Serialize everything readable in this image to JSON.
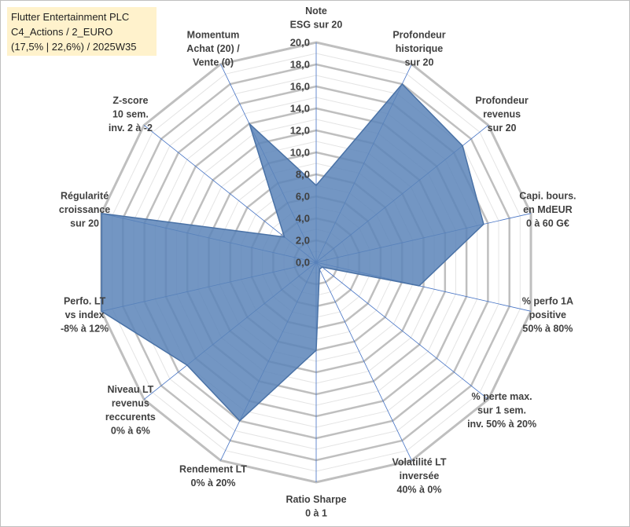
{
  "info_box": {
    "line1": "Flutter Entertainment PLC",
    "line2": "C4_Actions / 2_EURO",
    "line3": "(17,5% | 22,6%) / 2025W35"
  },
  "chart_data": {
    "type": "radar",
    "rmin": 0,
    "rmax": 20,
    "tick_step": 2,
    "ticks": [
      "0,0",
      "2,0",
      "4,0",
      "6,0",
      "8,0",
      "10,0",
      "12,0",
      "14,0",
      "16,0",
      "18,0",
      "20,0"
    ],
    "grid": true,
    "legend": "none",
    "axes": [
      {
        "label": [
          "Note",
          "ESG sur 20"
        ],
        "value": 7
      },
      {
        "label": [
          "Profondeur",
          "historique",
          "sur 20"
        ],
        "value": 18
      },
      {
        "label": [
          "Profondeur",
          "revenus",
          "sur 20"
        ],
        "value": 17
      },
      {
        "label": [
          "Capi. bours.",
          "en MdEUR",
          "0 à 60 G€"
        ],
        "value": 15.6
      },
      {
        "label": [
          "% perfo 1A",
          "positive",
          "50% à 80%"
        ],
        "value": 9.6
      },
      {
        "label": [
          "% perte max.",
          "sur 1 sem.",
          "inv. 50% à 20%"
        ],
        "value": 0.7
      },
      {
        "label": [
          "Volatilité LT",
          "inversée",
          "40% à 0%"
        ],
        "value": 0.7
      },
      {
        "label": [
          "Ratio Sharpe",
          "0 à 1"
        ],
        "value": 8
      },
      {
        "label": [
          "Rendement LT",
          "0% à 20%"
        ],
        "value": 16
      },
      {
        "label": [
          "Niveau LT",
          "revenus",
          "reccurents",
          "0% à 6%"
        ],
        "value": 15
      },
      {
        "label": [
          "Perfo. LT",
          "vs index",
          "-8% à 12%"
        ],
        "value": 20
      },
      {
        "label": [
          "Régularité",
          "croissance",
          "sur 20"
        ],
        "value": 20
      },
      {
        "label": [
          "Z-score",
          "10 sem.",
          "inv. 2 à -2"
        ],
        "value": 3.7
      },
      {
        "label": [
          "Momentum",
          "Achat (20) /",
          "Vente (0)"
        ],
        "value": 14
      }
    ],
    "colors": {
      "fill": "#5b84b9",
      "stroke": "#4a72a6",
      "grid": "#bfbfbf",
      "minor_grid": "#e4e4e4",
      "spoke": "#4472c4"
    }
  }
}
